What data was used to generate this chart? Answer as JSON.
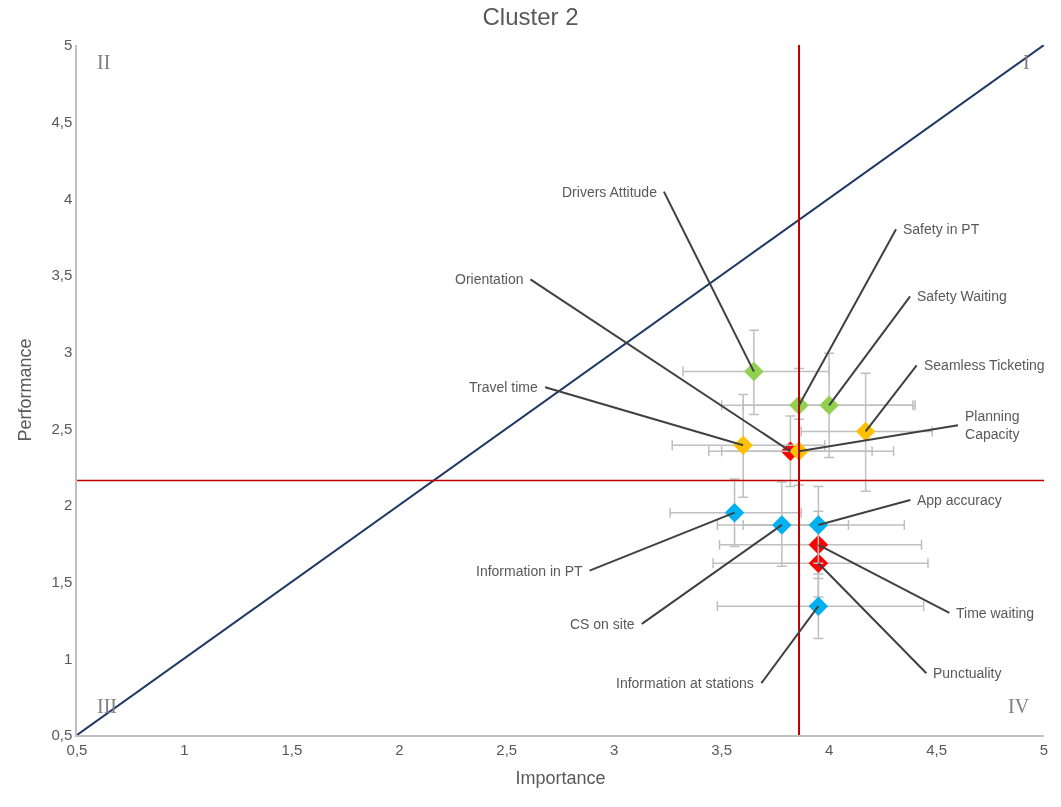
{
  "chart_data": {
    "type": "scatter",
    "title": "Cluster 2",
    "xlabel": "Importance",
    "ylabel": "Performance",
    "marker": "diamond",
    "xlim": [
      0.5,
      5
    ],
    "ylim": [
      0.5,
      5
    ],
    "xticks": [
      {
        "value": 0.5,
        "label": "0,5"
      },
      1,
      {
        "value": 1.5,
        "label": "1,5"
      },
      2,
      {
        "value": 2.5,
        "label": "2,5"
      },
      3,
      {
        "value": 3.5,
        "label": "3,5"
      },
      4,
      {
        "value": 4.5,
        "label": "4,5"
      },
      5
    ],
    "yticks": [
      {
        "value": 0.5,
        "label": "0,5"
      },
      1,
      {
        "value": 1.5,
        "label": "1,5"
      },
      2,
      {
        "value": 2.5,
        "label": "2,5"
      },
      3,
      {
        "value": 3.5,
        "label": "3,5"
      },
      4,
      {
        "value": 4.5,
        "label": "4,5"
      },
      5
    ],
    "series": [
      {
        "color": "#92d050",
        "x": [
          3.65,
          3.86,
          4.0
        ],
        "values": [
          2.87,
          2.65,
          2.65
        ],
        "xerrors": [
          [
            3.32,
            4.0
          ],
          [
            3.5,
            4.39
          ],
          [
            3.6,
            4.4
          ]
        ],
        "errors": [
          [
            2.59,
            3.14
          ],
          [
            2.38,
            2.89
          ],
          [
            2.31,
            2.99
          ]
        ]
      },
      {
        "color": "#ffc000",
        "x": [
          3.6,
          4.17,
          3.86
        ],
        "values": [
          2.39,
          2.48,
          2.35
        ],
        "xerrors": [
          [
            3.27,
            3.98
          ],
          [
            3.87,
            4.48
          ],
          [
            3.44,
            4.3
          ]
        ],
        "errors": [
          [
            2.05,
            2.72
          ],
          [
            2.09,
            2.86
          ],
          [
            2.13,
            2.56
          ]
        ]
      },
      {
        "color": "#ff0000",
        "x": [
          3.82,
          3.95,
          3.95
        ],
        "values": [
          2.35,
          1.74,
          1.62
        ],
        "xerrors": [
          [
            3.5,
            4.2
          ],
          [
            3.49,
            4.43
          ],
          [
            3.46,
            4.46
          ]
        ],
        "errors": [
          [
            2.12,
            2.58
          ],
          [
            1.52,
            1.96
          ],
          [
            1.4,
            1.84
          ]
        ]
      },
      {
        "color": "#00b0f0",
        "x": [
          3.56,
          3.78,
          3.95,
          3.95
        ],
        "values": [
          1.95,
          1.87,
          1.87,
          1.34
        ],
        "xerrors": [
          [
            3.26,
            3.87
          ],
          [
            3.48,
            4.09
          ],
          [
            3.6,
            4.35
          ],
          [
            3.48,
            4.44
          ]
        ],
        "errors": [
          [
            1.73,
            2.17
          ],
          [
            1.6,
            2.15
          ],
          [
            1.62,
            2.12
          ],
          [
            1.13,
            1.55
          ]
        ]
      },
      {
        "type": "line",
        "color": "#203864",
        "marker": "none",
        "x": [
          0.5,
          5
        ],
        "values": [
          0.5,
          5
        ]
      }
    ],
    "ref_lines": [
      {
        "axis": "x",
        "value": 3.86,
        "color": "#c00000"
      },
      {
        "axis": "y",
        "value": 2.16,
        "color": "#c00000"
      }
    ],
    "annotations": [
      {
        "text": "Drivers Attitude",
        "x": 3.65,
        "y": 2.87
      },
      {
        "text": "Orientation",
        "x": 3.82,
        "y": 2.35
      },
      {
        "text": "Travel time",
        "x": 3.6,
        "y": 2.39
      },
      {
        "text": "Safety in PT",
        "x": 3.86,
        "y": 2.65
      },
      {
        "text": "Safety Waiting",
        "x": 4.0,
        "y": 2.65
      },
      {
        "text": "Seamless Ticketing",
        "x": 4.17,
        "y": 2.48
      },
      {
        "text": "Planning\nCapacity",
        "x": 3.86,
        "y": 2.35
      },
      {
        "text": "App accuracy",
        "x": 3.95,
        "y": 1.87
      },
      {
        "text": "Information in PT",
        "x": 3.56,
        "y": 1.95
      },
      {
        "text": "CS on site",
        "x": 3.78,
        "y": 1.87
      },
      {
        "text": "Information at stations",
        "x": 3.95,
        "y": 1.34
      },
      {
        "text": "Time waiting",
        "x": 3.95,
        "y": 1.74
      },
      {
        "text": "Punctuality",
        "x": 3.95,
        "y": 1.62
      },
      "I",
      "II",
      "III",
      "IV"
    ]
  }
}
